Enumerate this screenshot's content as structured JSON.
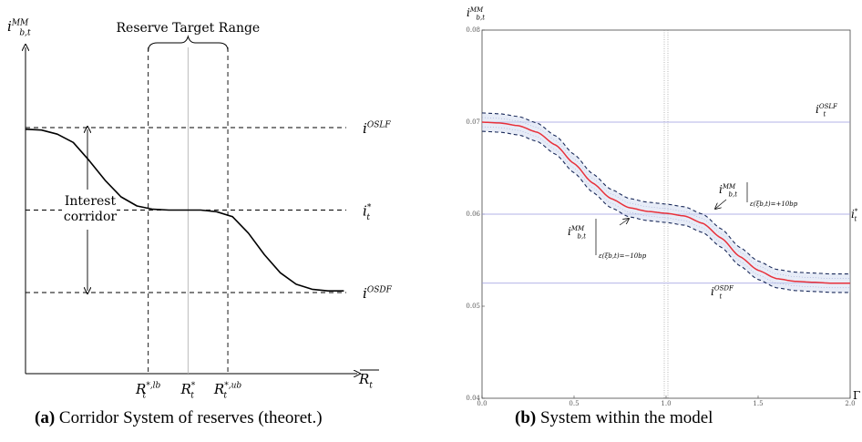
{
  "chart_data": [
    {
      "id": "a",
      "type": "line",
      "caption_tag": "(a)",
      "caption_text": "Corridor System of reserves (theoret.)",
      "ylabel": {
        "base": "i",
        "sub": "b,t",
        "sup": "MM"
      },
      "xlabel": {
        "base": "R",
        "sub": "t"
      },
      "bracket_label": "Reserve Target Range",
      "corridor_label": [
        "Interest",
        "corridor"
      ],
      "rates": [
        {
          "key": "oslf",
          "level": 1.0,
          "label": {
            "base": "i",
            "sup": "OSLF"
          }
        },
        {
          "key": "target",
          "level": 0.5,
          "label": {
            "base": "i",
            "sup": "*",
            "sub": "t"
          }
        },
        {
          "key": "osdf",
          "level": 0.0,
          "label": {
            "base": "i",
            "sup": "OSDF"
          }
        }
      ],
      "xticks": [
        {
          "x": 0.37,
          "label": {
            "base": "R",
            "sup": "*,lb",
            "sub": "t"
          }
        },
        {
          "x": 0.49,
          "label": {
            "base": "R",
            "sup": "*",
            "sub": "t"
          }
        },
        {
          "x": 0.61,
          "label": {
            "base": "R",
            "sup": "*,ub",
            "sub": "t"
          }
        }
      ],
      "curve": {
        "x": [
          0.0,
          0.05,
          0.1,
          0.15,
          0.2,
          0.25,
          0.3,
          0.35,
          0.4,
          0.45,
          0.5,
          0.55,
          0.6,
          0.65,
          0.7,
          0.75,
          0.8,
          0.85,
          0.9,
          0.95,
          1.0
        ],
        "y": [
          0.99,
          0.985,
          0.96,
          0.91,
          0.8,
          0.68,
          0.58,
          0.525,
          0.505,
          0.5,
          0.5,
          0.5,
          0.49,
          0.46,
          0.36,
          0.23,
          0.12,
          0.05,
          0.02,
          0.01,
          0.01
        ]
      }
    },
    {
      "id": "b",
      "type": "line",
      "caption_tag": "(b)",
      "caption_text": "System within the model",
      "ylabel": {
        "base": "i",
        "sub": "b,t",
        "sup": "MM"
      },
      "xlabel": "Γ",
      "xlim": [
        0.0,
        2.0
      ],
      "ylim": [
        0.04,
        0.08
      ],
      "xticks": [
        0.0,
        0.5,
        1.0,
        1.5,
        2.0
      ],
      "yticks": [
        0.04,
        0.05,
        0.06,
        0.07,
        0.08
      ],
      "xtick_labels": [
        "0.0",
        "0.5",
        "1.0",
        "1.5",
        "2.0"
      ],
      "ytick_labels": [
        "0.04",
        "0.05",
        "0.06",
        "0.07",
        "0.08"
      ],
      "rates": [
        {
          "key": "oslf",
          "y": 0.07,
          "label": {
            "base": "i",
            "sup": "OSLF",
            "sub": "t"
          }
        },
        {
          "key": "target",
          "y": 0.06,
          "label": {
            "base": "i",
            "sup": "*",
            "sub": "t"
          }
        },
        {
          "key": "osdf",
          "y": 0.0525,
          "label": {
            "base": "i",
            "sup": "OSDF",
            "sub": "t"
          }
        }
      ],
      "vline_x": 1.0,
      "band": 0.001,
      "colors": {
        "curve": "#e8303a",
        "rate_lines": "#9a9adf",
        "band": "#1a2a5a"
      },
      "annotations": [
        {
          "key": "upper",
          "text": {
            "base": "i",
            "sup": "MM",
            "sub": "b,t"
          },
          "cond": "ε(ξb,t)=+10bp"
        },
        {
          "key": "lower",
          "text": {
            "base": "i",
            "sup": "MM",
            "sub": "b,t"
          },
          "cond": "ε(ξb,t)=−10bp"
        }
      ],
      "series": [
        {
          "name": "",
          "x": [
            0.0,
            0.1,
            0.2,
            0.3,
            0.4,
            0.5,
            0.6,
            0.7,
            0.8,
            0.9,
            1.0,
            1.1,
            1.2,
            1.3,
            1.4,
            1.5,
            1.6,
            1.7,
            1.8,
            1.9,
            2.0
          ],
          "y": [
            0.07,
            0.0699,
            0.0696,
            0.0689,
            0.0675,
            0.0655,
            0.0634,
            0.0617,
            0.0607,
            0.0603,
            0.0601,
            0.0598,
            0.059,
            0.0574,
            0.0554,
            0.0539,
            0.053,
            0.0527,
            0.0526,
            0.0525,
            0.0525
          ]
        }
      ]
    }
  ]
}
